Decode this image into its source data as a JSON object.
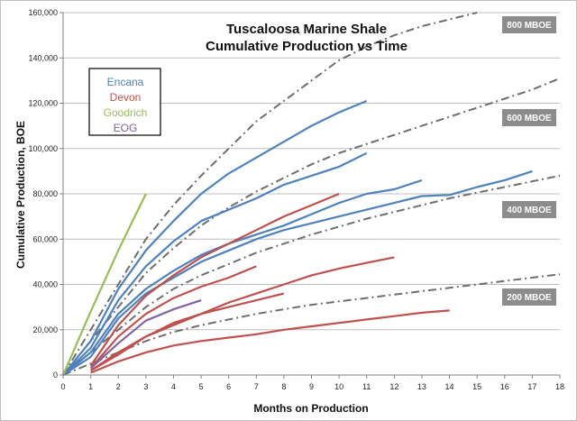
{
  "chart_data": {
    "type": "line",
    "title": "Tuscaloosa Marine Shale",
    "subtitle": "Cumulative Production vs Time",
    "xlabel": "Months on Production",
    "ylabel": "Cumulative Production, BOE",
    "xlim": [
      0,
      18
    ],
    "ylim": [
      0,
      160000
    ],
    "x_ticks": [
      "0",
      "1",
      "2",
      "3",
      "4",
      "5",
      "6",
      "7",
      "8",
      "9",
      "10",
      "11",
      "12",
      "13",
      "14",
      "15",
      "16",
      "17",
      "18"
    ],
    "y_ticks": [
      "0",
      "20,000",
      "40,000",
      "60,000",
      "80,000",
      "100,000",
      "120,000",
      "140,000",
      "160,000"
    ],
    "grid": "horizontal",
    "legend_placement": "top-left",
    "legend": [
      {
        "name": "Encana",
        "color": "#4f81bd"
      },
      {
        "name": "Devon",
        "color": "#c0504d"
      },
      {
        "name": "Goodrich",
        "color": "#9bbb59"
      },
      {
        "name": "EOG",
        "color": "#8064a2"
      }
    ],
    "reference_curves": [
      {
        "label": "800 MBOE",
        "x": [
          0,
          1,
          2,
          3,
          4,
          5,
          6,
          7,
          8,
          9,
          10,
          11,
          12,
          13,
          14,
          15,
          16
        ],
        "y": [
          0,
          20000,
          40000,
          60000,
          75000,
          88000,
          100000,
          112000,
          121000,
          130000,
          139000,
          145000,
          150000,
          154000,
          157000,
          160000,
          162000
        ]
      },
      {
        "label": "600 MBOE",
        "x": [
          0,
          1,
          2,
          3,
          4,
          5,
          6,
          7,
          8,
          9,
          10,
          11,
          12,
          13,
          14,
          15,
          16,
          17,
          18
        ],
        "y": [
          0,
          15000,
          30000,
          45000,
          56000,
          66000,
          74000,
          81000,
          87000,
          93000,
          98000,
          102000,
          106000,
          110000,
          114000,
          118000,
          122000,
          126000,
          131000
        ]
      },
      {
        "label": "400 MBOE",
        "x": [
          0,
          1,
          2,
          3,
          4,
          5,
          6,
          7,
          8,
          9,
          10,
          11,
          12,
          13,
          14,
          15,
          16,
          17,
          18
        ],
        "y": [
          0,
          10000,
          20000,
          30000,
          38000,
          44000,
          49000,
          54000,
          58000,
          62000,
          65500,
          69000,
          72000,
          75000,
          78000,
          80500,
          83000,
          85500,
          88000
        ]
      },
      {
        "label": "200 MBOE",
        "x": [
          0,
          1,
          2,
          3,
          4,
          5,
          6,
          7,
          8,
          9,
          10,
          11,
          12,
          13,
          14,
          15,
          16,
          17,
          18
        ],
        "y": [
          0,
          5000,
          10000,
          15000,
          19000,
          22000,
          24500,
          27000,
          29000,
          31000,
          32500,
          34000,
          35500,
          37000,
          38500,
          40000,
          41500,
          43000,
          44500
        ]
      }
    ],
    "series": [
      {
        "operator": "Encana",
        "color": "#4f81bd",
        "x": [
          0,
          1,
          2,
          3,
          4,
          5,
          6,
          7,
          8,
          9,
          10,
          11
        ],
        "y": [
          0,
          15000,
          38000,
          55000,
          68000,
          80000,
          89000,
          96000,
          103000,
          110000,
          116000,
          121000
        ]
      },
      {
        "operator": "Encana",
        "color": "#4f81bd",
        "x": [
          0,
          1,
          2,
          3,
          4,
          5,
          6,
          7,
          8,
          9,
          10,
          11
        ],
        "y": [
          0,
          12000,
          33000,
          48000,
          59000,
          68000,
          73000,
          78000,
          84000,
          88000,
          92000,
          98000
        ]
      },
      {
        "operator": "Encana",
        "color": "#4f81bd",
        "x": [
          0,
          1,
          2,
          3,
          4,
          5,
          6,
          7,
          8,
          9,
          10,
          11,
          12,
          13
        ],
        "y": [
          0,
          10000,
          27000,
          38000,
          46000,
          53000,
          58000,
          62000,
          66000,
          71000,
          76000,
          80000,
          82000,
          86000
        ]
      },
      {
        "operator": "Encana",
        "color": "#4f81bd",
        "x": [
          0,
          1,
          2,
          3,
          4,
          5,
          6,
          7,
          8,
          9,
          10,
          11,
          12,
          13,
          14,
          15,
          16,
          17
        ],
        "y": [
          0,
          8000,
          25000,
          36000,
          43000,
          50000,
          55000,
          60000,
          64000,
          67000,
          70000,
          73000,
          76000,
          79000,
          79500,
          83000,
          86000,
          90000
        ]
      },
      {
        "operator": "Devon",
        "color": "#c0504d",
        "x": [
          1,
          2,
          3,
          4,
          5,
          6,
          7,
          8,
          9,
          10
        ],
        "y": [
          4000,
          22000,
          35000,
          44000,
          52000,
          58000,
          64000,
          70000,
          75000,
          80000
        ]
      },
      {
        "operator": "Devon",
        "color": "#c0504d",
        "x": [
          1,
          2,
          3,
          4,
          5,
          6,
          7
        ],
        "y": [
          3000,
          17000,
          27000,
          34000,
          39000,
          43000,
          48000
        ]
      },
      {
        "operator": "Devon",
        "color": "#c0504d",
        "x": [
          1,
          2,
          3,
          4,
          5,
          6,
          7,
          8,
          9,
          10,
          11,
          12
        ],
        "y": [
          2000,
          10000,
          17000,
          22000,
          27000,
          32000,
          36000,
          40000,
          44000,
          47000,
          49500,
          52000
        ]
      },
      {
        "operator": "Devon",
        "color": "#c0504d",
        "x": [
          1,
          2,
          3,
          4,
          5,
          6,
          7,
          8
        ],
        "y": [
          2000,
          9000,
          17000,
          23000,
          27000,
          30000,
          33000,
          36000
        ]
      },
      {
        "operator": "Devon",
        "color": "#c0504d",
        "x": [
          1,
          2,
          3,
          4,
          5,
          6,
          7,
          8,
          9,
          10,
          11,
          12,
          13,
          14
        ],
        "y": [
          1000,
          6000,
          10000,
          13000,
          15000,
          16500,
          18000,
          20000,
          21500,
          23000,
          24500,
          26000,
          27500,
          28500
        ]
      },
      {
        "operator": "Goodrich",
        "color": "#9bbb59",
        "x": [
          0,
          1,
          2,
          3
        ],
        "y": [
          0,
          28000,
          55000,
          80000
        ]
      },
      {
        "operator": "EOG",
        "color": "#8064a2",
        "x": [
          1,
          2,
          3,
          4,
          5
        ],
        "y": [
          3000,
          14000,
          24000,
          29000,
          33000
        ]
      }
    ]
  }
}
